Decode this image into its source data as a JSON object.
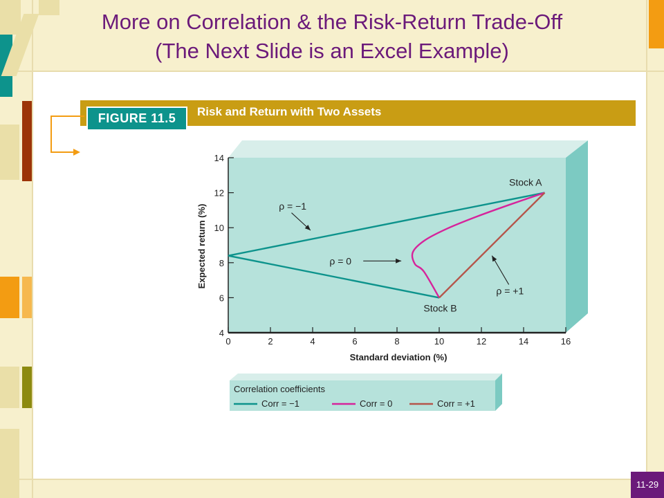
{
  "slide": {
    "title_line1": "More on Correlation & the Risk-Return Trade-Off",
    "title_line2": "(The Next Slide is an Excel Example)",
    "page_number": "11-29"
  },
  "figure": {
    "tag": "FIGURE 11.5",
    "caption": "Risk and Return with Two Assets"
  },
  "colors": {
    "title": "#6b1a7a",
    "plot_bg": "#b6e2db",
    "teal": "#0d938c",
    "magenta": "#d6239b",
    "brown": "#b5554a",
    "gold": "#c99d14"
  },
  "chart_data": {
    "type": "line",
    "xlabel": "Standard deviation (%)",
    "ylabel": "Expected return (%)",
    "xlim": [
      0,
      16
    ],
    "ylim": [
      4,
      14
    ],
    "x_ticks": [
      "0",
      "2",
      "4",
      "6",
      "8",
      "10",
      "12",
      "14",
      "16"
    ],
    "y_ticks": [
      "4",
      "6",
      "8",
      "10",
      "12",
      "14"
    ],
    "grid": false,
    "legend_position": "bottom",
    "legend_title": "Correlation coefficients",
    "series": [
      {
        "name": "Corr = −1",
        "color": "#0d938c",
        "points": [
          [
            15,
            12
          ],
          [
            0,
            8.4
          ],
          [
            10,
            6
          ]
        ]
      },
      {
        "name": "Corr = 0",
        "color": "#d6239b",
        "points": [
          [
            15.0,
            12.0
          ],
          [
            13.35,
            11.32
          ],
          [
            11.79,
            10.64
          ],
          [
            10.4,
            9.96
          ],
          [
            9.32,
            9.28
          ],
          [
            8.75,
            8.6
          ],
          [
            8.85,
            7.92
          ],
          [
            9.27,
            7.5
          ],
          [
            10.0,
            6.0
          ]
        ]
      },
      {
        "name": "Corr = +1",
        "color": "#b5554a",
        "points": [
          [
            15,
            12
          ],
          [
            10,
            6
          ]
        ]
      }
    ],
    "annotations": [
      {
        "text": "Stock A"
      },
      {
        "text": "Stock B"
      },
      {
        "text": "ρ = −1"
      },
      {
        "text": "ρ = 0"
      },
      {
        "text": "ρ = +1"
      }
    ]
  }
}
